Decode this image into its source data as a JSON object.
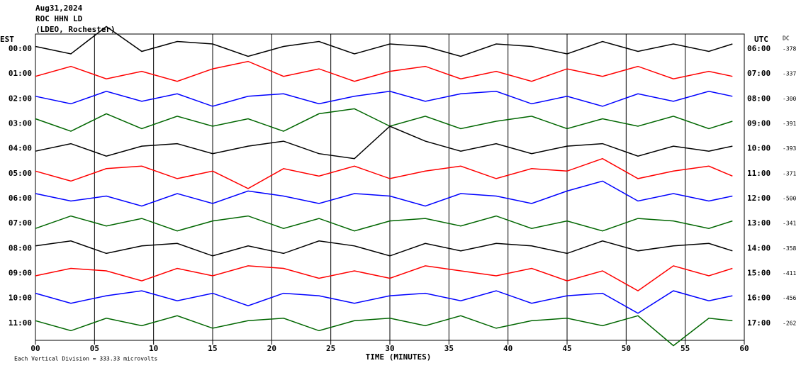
{
  "chart_data": {
    "type": "helicorder",
    "title": [
      "Aug31,2024",
      "ROC HHN LD",
      "(LDEO, Rochester)"
    ],
    "left_label": "EST",
    "right_label": "UTC",
    "dc_label": "DC",
    "xlabel": "TIME (MINUTES)",
    "footer": "Each Vertical Division =  333.33 microvolts",
    "xlim": [
      0,
      60
    ],
    "xticks": [
      {
        "value": 0,
        "label": "00"
      },
      {
        "value": 5,
        "label": "05"
      },
      10,
      15,
      20,
      25,
      30,
      35,
      40,
      45,
      50,
      55,
      60
    ],
    "grid": true,
    "x": [
      0,
      3,
      6,
      9,
      12,
      15,
      18,
      21,
      24,
      27,
      30,
      33,
      36,
      39,
      42,
      45,
      48,
      51,
      54,
      57,
      59
    ],
    "series": [
      {
        "name": "00:00",
        "utc": "06:00",
        "dc": -378,
        "color": "#000000",
        "values": [
          0.1,
          -0.2,
          0.9,
          -0.1,
          0.3,
          0.2,
          -0.3,
          0.1,
          0.3,
          -0.2,
          0.2,
          0.1,
          -0.3,
          0.2,
          0.1,
          -0.2,
          0.3,
          -0.1,
          0.2,
          -0.1,
          0.2
        ]
      },
      {
        "name": "01:00",
        "utc": "07:00",
        "dc": -337,
        "color": "#ff0000",
        "values": [
          -0.1,
          0.3,
          -0.2,
          0.1,
          -0.3,
          0.2,
          0.5,
          -0.1,
          0.2,
          -0.3,
          0.1,
          0.3,
          -0.2,
          0.1,
          -0.3,
          0.2,
          -0.1,
          0.3,
          -0.2,
          0.1,
          -0.1
        ]
      },
      {
        "name": "02:00",
        "utc": "08:00",
        "dc": -300,
        "color": "#0000ff",
        "values": [
          0.1,
          -0.2,
          0.3,
          -0.1,
          0.2,
          -0.3,
          0.1,
          0.2,
          -0.2,
          0.1,
          0.3,
          -0.1,
          0.2,
          0.3,
          -0.2,
          0.1,
          -0.3,
          0.2,
          -0.1,
          0.3,
          0.1
        ]
      },
      {
        "name": "03:00",
        "utc": "09:00",
        "dc": -391,
        "color": "#006600",
        "values": [
          0.2,
          -0.3,
          0.4,
          -0.2,
          0.3,
          -0.1,
          0.2,
          -0.3,
          0.4,
          0.6,
          -0.1,
          0.3,
          -0.2,
          0.1,
          0.3,
          -0.2,
          0.2,
          -0.1,
          0.3,
          -0.2,
          0.1
        ]
      },
      {
        "name": "04:00",
        "utc": "10:00",
        "dc": -393,
        "color": "#000000",
        "values": [
          -0.1,
          0.2,
          -0.3,
          0.1,
          0.2,
          -0.2,
          0.1,
          0.3,
          -0.2,
          -0.4,
          0.9,
          0.3,
          -0.1,
          0.2,
          -0.2,
          0.1,
          0.2,
          -0.3,
          0.1,
          -0.1,
          0.1
        ]
      },
      {
        "name": "05:00",
        "utc": "11:00",
        "dc": -371,
        "color": "#ff0000",
        "values": [
          0.1,
          -0.3,
          0.2,
          0.3,
          -0.2,
          0.1,
          -0.6,
          0.2,
          -0.1,
          0.3,
          -0.2,
          0.1,
          0.3,
          -0.2,
          0.2,
          0.1,
          0.6,
          -0.2,
          0.1,
          0.3,
          -0.1
        ]
      },
      {
        "name": "06:00",
        "utc": "12:00",
        "dc": -500,
        "color": "#0000ff",
        "values": [
          0.2,
          -0.1,
          0.1,
          -0.3,
          0.2,
          -0.2,
          0.3,
          0.1,
          -0.2,
          0.2,
          0.1,
          -0.3,
          0.2,
          0.1,
          -0.2,
          0.3,
          0.7,
          -0.1,
          0.2,
          -0.1,
          0.1
        ]
      },
      {
        "name": "07:00",
        "utc": "13:00",
        "dc": -341,
        "color": "#006600",
        "values": [
          -0.2,
          0.3,
          -0.1,
          0.2,
          -0.3,
          0.1,
          0.3,
          -0.2,
          0.2,
          -0.3,
          0.1,
          0.2,
          -0.1,
          0.3,
          -0.2,
          0.1,
          -0.3,
          0.2,
          0.1,
          -0.2,
          0.1
        ]
      },
      {
        "name": "08:00",
        "utc": "14:00",
        "dc": -358,
        "color": "#000000",
        "values": [
          0.1,
          0.3,
          -0.2,
          0.1,
          0.2,
          -0.3,
          0.1,
          -0.2,
          0.3,
          0.1,
          -0.3,
          0.2,
          -0.1,
          0.2,
          0.1,
          -0.2,
          0.3,
          -0.1,
          0.1,
          0.2,
          -0.1
        ]
      },
      {
        "name": "09:00",
        "utc": "15:00",
        "dc": -411,
        "color": "#ff0000",
        "values": [
          -0.1,
          0.2,
          0.1,
          -0.3,
          0.2,
          -0.1,
          0.3,
          0.2,
          -0.2,
          0.1,
          -0.2,
          0.3,
          0.1,
          -0.1,
          0.2,
          -0.3,
          0.1,
          -0.7,
          0.3,
          -0.1,
          0.2
        ]
      },
      {
        "name": "10:00",
        "utc": "16:00",
        "dc": -456,
        "color": "#0000ff",
        "values": [
          0.2,
          -0.2,
          0.1,
          0.3,
          -0.1,
          0.2,
          -0.3,
          0.2,
          0.1,
          -0.2,
          0.1,
          0.2,
          -0.1,
          0.3,
          -0.2,
          0.1,
          0.2,
          -0.6,
          0.3,
          -0.1,
          0.1
        ]
      },
      {
        "name": "11:00",
        "utc": "17:00",
        "dc": -262,
        "color": "#006600",
        "values": [
          0.1,
          -0.3,
          0.2,
          -0.1,
          0.3,
          -0.2,
          0.1,
          0.2,
          -0.3,
          0.1,
          0.2,
          -0.1,
          0.3,
          -0.2,
          0.1,
          0.2,
          -0.1,
          0.3,
          -0.9,
          0.2,
          0.1
        ]
      }
    ]
  }
}
